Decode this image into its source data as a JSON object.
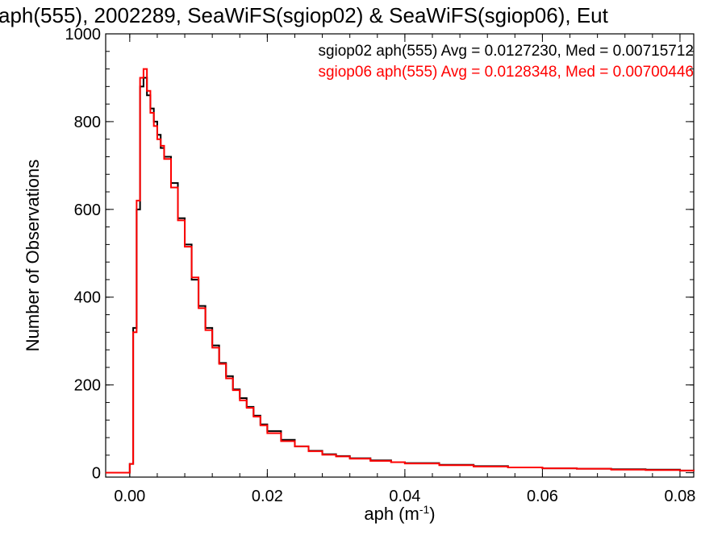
{
  "chart_data": {
    "type": "line",
    "title": "aph(555), 2002289, SeaWiFS(sgiop02) & SeaWiFS(sgiop06), Eut",
    "xlabel": "aph (m",
    "xlabel_sup": "-1",
    "xlabel_close": ")",
    "ylabel": "Number of Observations",
    "xlim": [
      -0.0035,
      0.082
    ],
    "ylim": [
      -10,
      1000
    ],
    "x_ticks": [
      0.0,
      0.02,
      0.04,
      0.06,
      0.08
    ],
    "x_tick_labels": [
      "0.00",
      "0.02",
      "0.04",
      "0.06",
      "0.08"
    ],
    "y_ticks": [
      0,
      200,
      400,
      600,
      800,
      1000
    ],
    "y_tick_labels": [
      "0",
      "200",
      "400",
      "600",
      "800",
      "1000"
    ],
    "grid": false,
    "step_style": "histogram",
    "series": [
      {
        "name": "sgiop02 aph(555) Avg = 0.0127230, Med = 0.00715712",
        "color": "#000000",
        "x": [
          -0.0035,
          0.0,
          0.0005,
          0.001,
          0.0015,
          0.002,
          0.0025,
          0.003,
          0.0035,
          0.004,
          0.0045,
          0.005,
          0.006,
          0.007,
          0.008,
          0.009,
          0.01,
          0.011,
          0.012,
          0.013,
          0.014,
          0.015,
          0.016,
          0.017,
          0.018,
          0.019,
          0.02,
          0.022,
          0.024,
          0.026,
          0.028,
          0.03,
          0.032,
          0.035,
          0.038,
          0.04,
          0.045,
          0.05,
          0.055,
          0.06,
          0.065,
          0.07,
          0.075,
          0.08,
          0.082
        ],
        "y": [
          0,
          20,
          330,
          600,
          880,
          900,
          860,
          830,
          800,
          770,
          740,
          720,
          660,
          580,
          520,
          440,
          380,
          330,
          290,
          250,
          220,
          190,
          170,
          150,
          130,
          110,
          95,
          75,
          60,
          50,
          42,
          38,
          33,
          28,
          24,
          22,
          18,
          15,
          12,
          10,
          9,
          8,
          7,
          5,
          4
        ]
      },
      {
        "name": "sgiop06 aph(555) Avg = 0.0128348, Med = 0.00700446",
        "color": "#ff0000",
        "x": [
          -0.0035,
          0.0,
          0.0005,
          0.001,
          0.0015,
          0.002,
          0.0025,
          0.003,
          0.0035,
          0.004,
          0.0045,
          0.005,
          0.006,
          0.007,
          0.008,
          0.009,
          0.01,
          0.011,
          0.012,
          0.013,
          0.014,
          0.015,
          0.016,
          0.017,
          0.018,
          0.019,
          0.02,
          0.022,
          0.024,
          0.026,
          0.028,
          0.03,
          0.032,
          0.035,
          0.038,
          0.04,
          0.045,
          0.05,
          0.055,
          0.06,
          0.065,
          0.07,
          0.075,
          0.08,
          0.082
        ],
        "y": [
          0,
          20,
          320,
          620,
          900,
          920,
          870,
          820,
          790,
          760,
          745,
          715,
          650,
          575,
          515,
          445,
          375,
          325,
          285,
          248,
          215,
          188,
          165,
          148,
          128,
          108,
          90,
          72,
          60,
          49,
          41,
          37,
          32,
          27,
          24,
          21,
          17,
          14,
          12,
          10,
          9,
          7,
          6,
          5,
          4
        ]
      }
    ],
    "legend_position": "top-right"
  }
}
